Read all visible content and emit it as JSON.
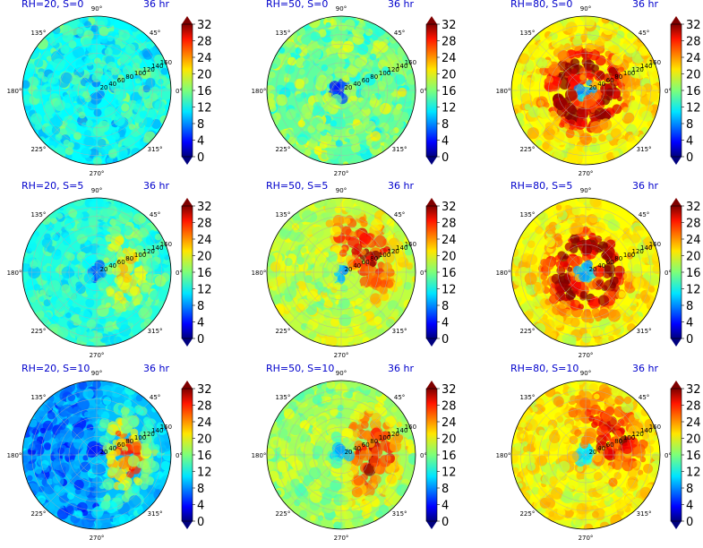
{
  "figure": {
    "time_label": "36 hr",
    "colormap": "jet",
    "colorbar": {
      "min": 0,
      "max": 32,
      "extend": "both",
      "ticks": [
        "0",
        "4",
        "8",
        "12",
        "16",
        "20",
        "24",
        "28",
        "32"
      ]
    },
    "angle_labels": [
      "90°",
      "45°",
      "0°",
      "315°",
      "270°",
      "225°",
      "180°",
      "135°"
    ],
    "radial_labels": [
      "20",
      "40",
      "60",
      "80",
      "100",
      "120",
      "140",
      "160"
    ]
  },
  "chart_data": [
    {
      "type": "heatmap",
      "projection": "polar",
      "title": "RH=20, S=0",
      "time": "36 hr",
      "rh": 20,
      "shear": 0,
      "peak_value": 18,
      "core_value": 6,
      "background_value": 12,
      "asymmetry": "none"
    },
    {
      "type": "heatmap",
      "projection": "polar",
      "title": "RH=50, S=0",
      "time": "36 hr",
      "rh": 50,
      "shear": 0,
      "peak_value": 22,
      "core_value": 4,
      "background_value": 15,
      "asymmetry": "none"
    },
    {
      "type": "heatmap",
      "projection": "polar",
      "title": "RH=80, S=0",
      "time": "36 hr",
      "rh": 80,
      "shear": 0,
      "peak_value": 32,
      "core_value": 8,
      "background_value": 20,
      "asymmetry": "ring"
    },
    {
      "type": "heatmap",
      "projection": "polar",
      "title": "RH=20, S=5",
      "time": "36 hr",
      "rh": 20,
      "shear": 5,
      "peak_value": 22,
      "core_value": 6,
      "background_value": 13,
      "asymmetry": "east"
    },
    {
      "type": "heatmap",
      "projection": "polar",
      "title": "RH=50, S=5",
      "time": "36 hr",
      "rh": 50,
      "shear": 5,
      "peak_value": 30,
      "core_value": 8,
      "background_value": 18,
      "asymmetry": "north-east"
    },
    {
      "type": "heatmap",
      "projection": "polar",
      "title": "RH=80, S=5",
      "time": "36 hr",
      "rh": 80,
      "shear": 5,
      "peak_value": 32,
      "core_value": 8,
      "background_value": 20,
      "asymmetry": "ring"
    },
    {
      "type": "heatmap",
      "projection": "polar",
      "title": "RH=20, S=10",
      "time": "36 hr",
      "rh": 20,
      "shear": 10,
      "peak_value": 26,
      "core_value": 4,
      "background_value": 10,
      "asymmetry": "east"
    },
    {
      "type": "heatmap",
      "projection": "polar",
      "title": "RH=50, S=10",
      "time": "36 hr",
      "rh": 50,
      "shear": 10,
      "peak_value": 30,
      "core_value": 8,
      "background_value": 17,
      "asymmetry": "east"
    },
    {
      "type": "heatmap",
      "projection": "polar",
      "title": "RH=80, S=10",
      "time": "36 hr",
      "rh": 80,
      "shear": 10,
      "peak_value": 30,
      "core_value": 10,
      "background_value": 20,
      "asymmetry": "north-east"
    }
  ]
}
